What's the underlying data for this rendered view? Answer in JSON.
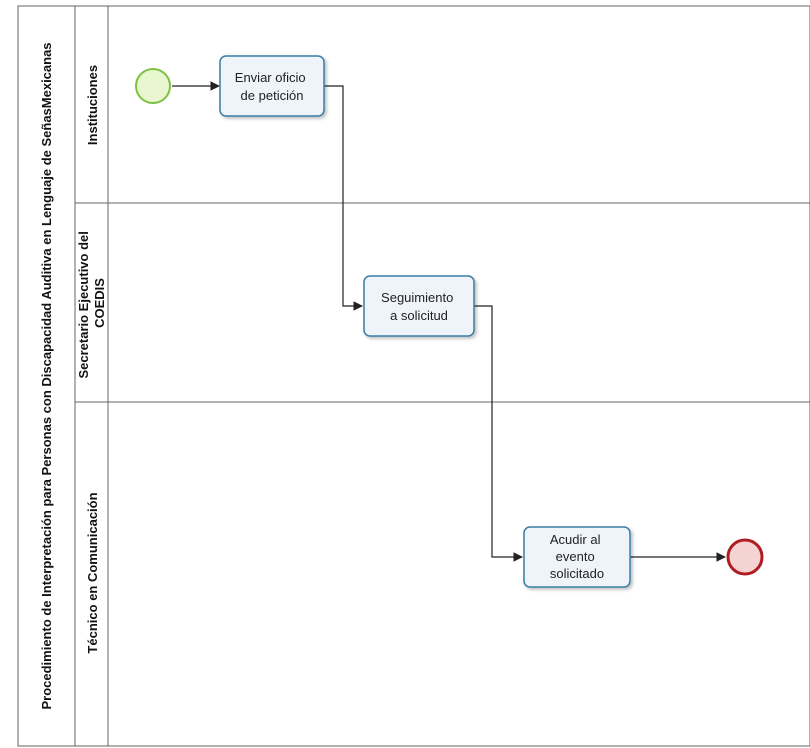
{
  "pool": {
    "title": "Procedimiento de Interpretación para Personas con Discapacidad Auditiva en Lenguaje de SeñasMexicanas"
  },
  "lanes": [
    {
      "id": "instituciones",
      "title_lines": [
        "Instituciones"
      ]
    },
    {
      "id": "secretario",
      "title_lines": [
        "Secretario Ejecutivo del",
        "COEDIS"
      ]
    },
    {
      "id": "tecnico",
      "title_lines": [
        "Técnico en Comunicación"
      ]
    }
  ],
  "tasks": [
    {
      "id": "t1",
      "lane": "instituciones",
      "lines": [
        "Enviar oficio",
        "de petición"
      ]
    },
    {
      "id": "t2",
      "lane": "secretario",
      "lines": [
        "Seguimiento",
        "a solicitud"
      ]
    },
    {
      "id": "t3",
      "lane": "tecnico",
      "lines": [
        "Acudir al",
        "evento",
        "solicitado"
      ]
    }
  ],
  "events": [
    {
      "id": "start",
      "type": "start",
      "lane": "instituciones",
      "color": "#7dc142",
      "fill": "#e8f7d0"
    },
    {
      "id": "end",
      "type": "end",
      "lane": "tecnico",
      "color": "#b01c24",
      "fill": "#f6d3d3"
    }
  ],
  "flows": [
    {
      "from": "start",
      "to": "t1"
    },
    {
      "from": "t1",
      "to": "t2"
    },
    {
      "from": "t2",
      "to": "t3"
    },
    {
      "from": "t3",
      "to": "end"
    }
  ],
  "colors": {
    "task_border": "#3a7ca5",
    "task_fill": "#eef4fa",
    "line": "#222222",
    "lane_border": "#666666"
  }
}
